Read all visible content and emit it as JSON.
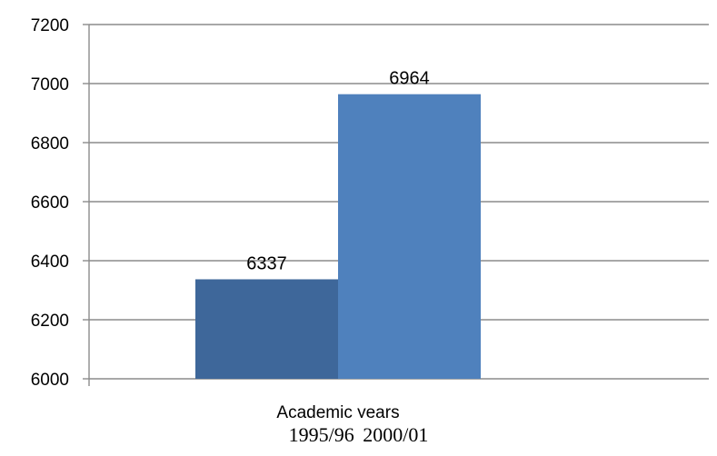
{
  "chart_data": {
    "type": "bar",
    "categories": [
      "Academic years"
    ],
    "series": [
      {
        "values": [
          6337
        ],
        "color": "#3e679a"
      },
      {
        "values": [
          6964
        ],
        "color": "#4f81bd"
      }
    ],
    "data_labels": [
      "6337",
      "6964"
    ],
    "yticks": [
      "6000",
      "6200",
      "6400",
      "6600",
      "6800",
      "7000",
      "7200"
    ],
    "ylim": [
      6000,
      7200
    ],
    "grid": true,
    "legend": "none",
    "title": "",
    "xlabel": "",
    "ylabel": ""
  },
  "caption": {
    "year_a": "1995/96",
    "year_b": "2000/01"
  }
}
